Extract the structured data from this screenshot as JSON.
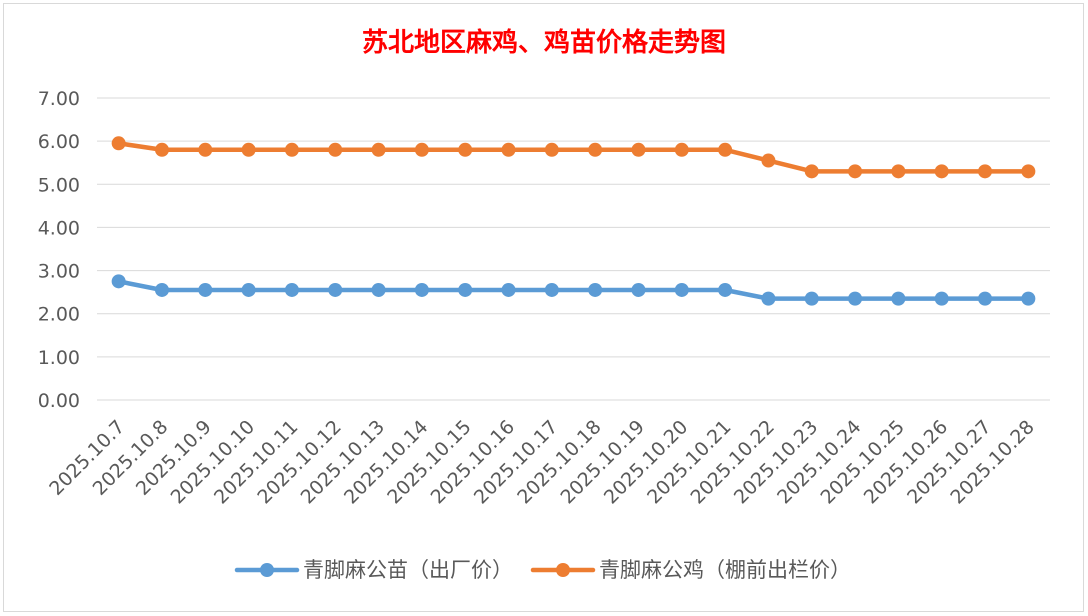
{
  "chart_data": {
    "type": "line",
    "title": "苏北地区麻鸡、鸡苗价格走势图",
    "title_color": "#FF0000",
    "categories": [
      "2025.10.7",
      "2025.10.8",
      "2025.10.9",
      "2025.10.10",
      "2025.10.11",
      "2025.10.12",
      "2025.10.13",
      "2025.10.14",
      "2025.10.15",
      "2025.10.16",
      "2025.10.17",
      "2025.10.18",
      "2025.10.19",
      "2025.10.20",
      "2025.10.21",
      "2025.10.22",
      "2025.10.23",
      "2025.10.24",
      "2025.10.25",
      "2025.10.26",
      "2025.10.27",
      "2025.10.28"
    ],
    "series": [
      {
        "name": "青脚麻公苗（出厂价）",
        "color": "#5B9BD5",
        "values": [
          2.75,
          2.55,
          2.55,
          2.55,
          2.55,
          2.55,
          2.55,
          2.55,
          2.55,
          2.55,
          2.55,
          2.55,
          2.55,
          2.55,
          2.55,
          2.35,
          2.35,
          2.35,
          2.35,
          2.35,
          2.35,
          2.35
        ]
      },
      {
        "name": "青脚麻公鸡（棚前出栏价）",
        "color": "#ED7D31",
        "values": [
          5.95,
          5.8,
          5.8,
          5.8,
          5.8,
          5.8,
          5.8,
          5.8,
          5.8,
          5.8,
          5.8,
          5.8,
          5.8,
          5.8,
          5.8,
          5.55,
          5.3,
          5.3,
          5.3,
          5.3,
          5.3,
          5.3
        ]
      }
    ],
    "y_tick_labels": [
      "0.00",
      "1.00",
      "2.00",
      "3.00",
      "4.00",
      "5.00",
      "6.00",
      "7.00"
    ],
    "ylim": [
      0,
      7
    ],
    "grid": true,
    "legend": "bottom"
  }
}
